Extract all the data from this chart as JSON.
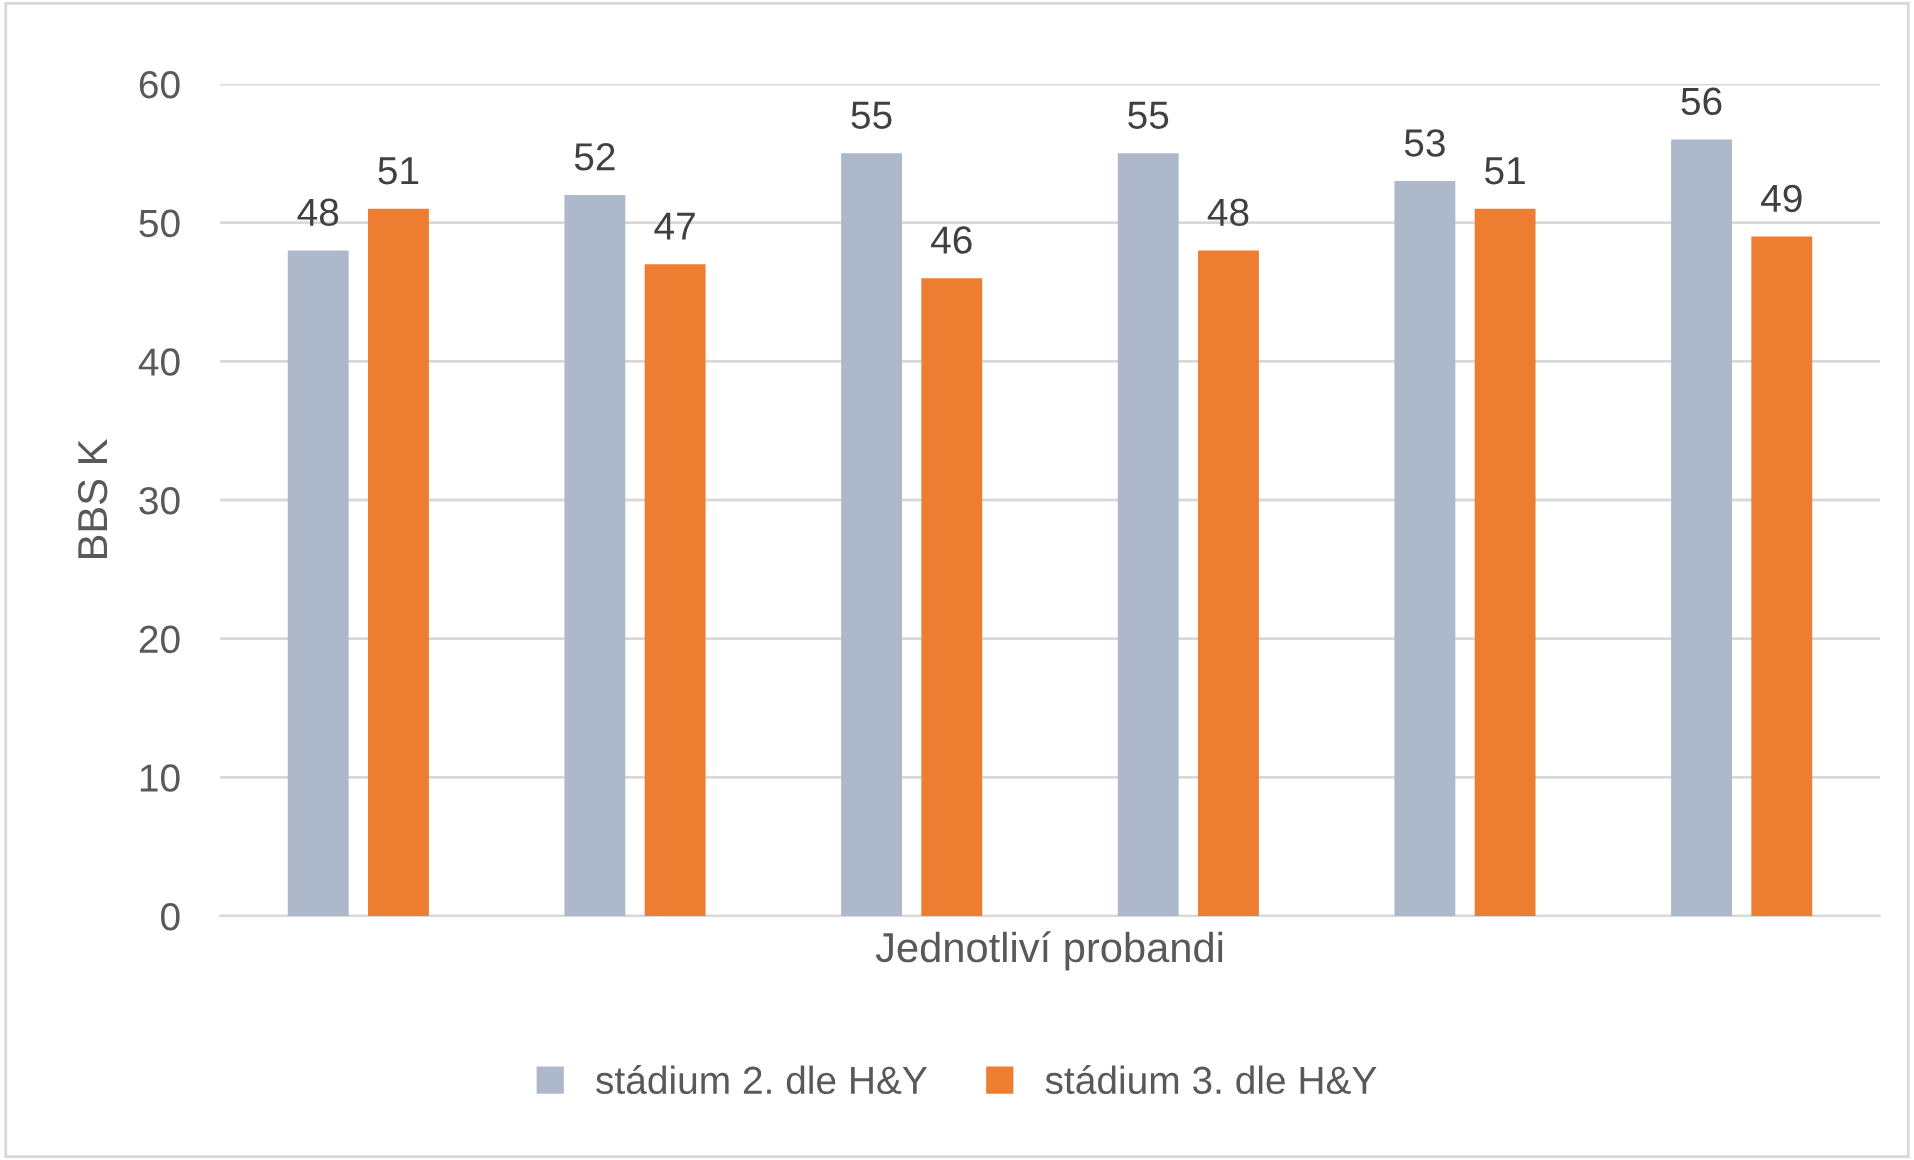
{
  "chart_data": {
    "type": "bar",
    "xlabel": "Jednotliví probandi",
    "ylabel": "BBS K",
    "categories": [
      null,
      null,
      null,
      null,
      null,
      null
    ],
    "series": [
      {
        "name": "stádium 2. dle H&Y",
        "color": "#adb9ca",
        "values": [
          48,
          52,
          55,
          55,
          53,
          56
        ]
      },
      {
        "name": "stádium 3. dle H&Y",
        "color": "#ed7d31",
        "values": [
          51,
          47,
          46,
          48,
          51,
          49
        ]
      }
    ],
    "ylim": [
      0,
      60
    ],
    "yticks": [
      0,
      10,
      20,
      30,
      40,
      50,
      60
    ],
    "grid": "y",
    "legend": "bottom",
    "data_labels": true
  }
}
